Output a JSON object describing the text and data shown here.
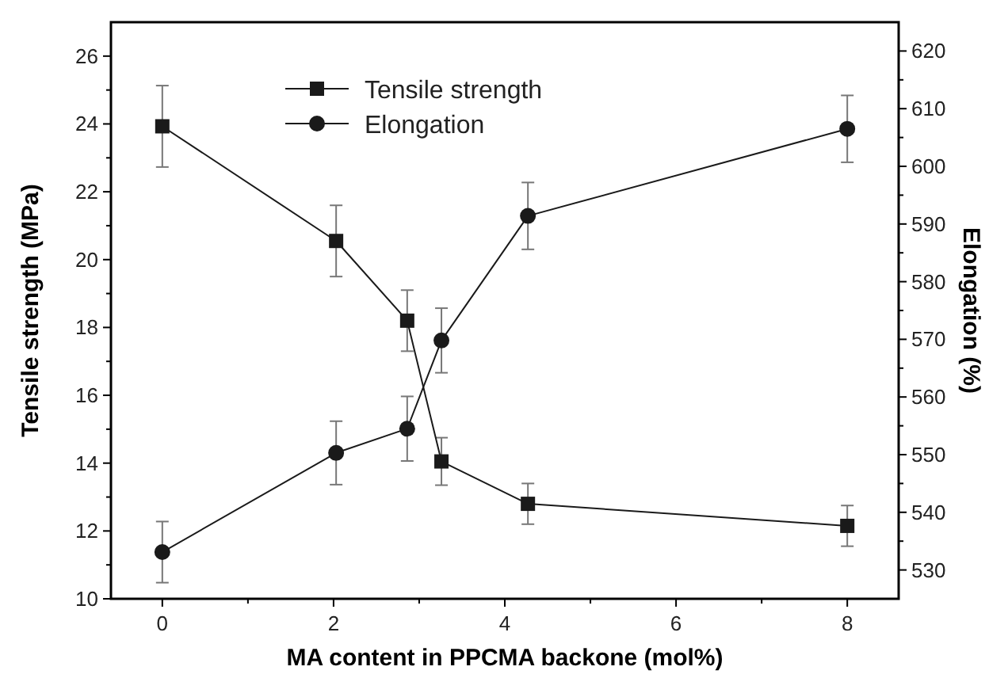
{
  "chart_data": {
    "type": "line",
    "xlabel": "MA content in PPCMA backone (mol%)",
    "ylabel": "Tensile strength (MPa)",
    "y2label": "Elongation (%)",
    "x": [
      0,
      2.03,
      2.86,
      3.26,
      4.27,
      8
    ],
    "xlim": [
      -0.6,
      8.6
    ],
    "xticks": [
      0,
      {
        "value": 1,
        "label": null
      },
      2,
      {
        "value": 3,
        "label": null
      },
      4,
      {
        "value": 5,
        "label": null
      },
      6,
      {
        "value": 7,
        "label": null
      },
      8
    ],
    "ylim": [
      10,
      27
    ],
    "yticks": [
      10,
      {
        "value": 11,
        "label": null
      },
      12,
      {
        "value": 13,
        "label": null
      },
      14,
      {
        "value": 15,
        "label": null
      },
      16,
      {
        "value": 17,
        "label": null
      },
      18,
      {
        "value": 19,
        "label": null
      },
      20,
      {
        "value": 21,
        "label": null
      },
      22,
      {
        "value": 23,
        "label": null
      },
      24,
      {
        "value": 25,
        "label": null
      },
      26
    ],
    "y2lim": [
      525,
      625
    ],
    "y2ticks": [
      530,
      {
        "value": 535,
        "label": null
      },
      540,
      {
        "value": 545,
        "label": null
      },
      550,
      {
        "value": 555,
        "label": null
      },
      560,
      {
        "value": 565,
        "label": null
      },
      570,
      {
        "value": 575,
        "label": null
      },
      580,
      {
        "value": 585,
        "label": null
      },
      590,
      {
        "value": 595,
        "label": null
      },
      600,
      {
        "value": 605,
        "label": null
      },
      610,
      {
        "value": 615,
        "label": null
      },
      620
    ],
    "grid": false,
    "legend": "top left",
    "line_style": "solid",
    "series": [
      {
        "name": "Tensile strength",
        "color": "#1a1a1a",
        "marker": "square",
        "values": [
          23.93,
          20.55,
          18.2,
          14.05,
          12.8,
          12.15
        ],
        "errors": [
          1.2,
          1.05,
          0.9,
          0.7,
          0.6,
          0.6
        ]
      },
      {
        "name": "Elongation",
        "color": "#1a1a1a",
        "marker": "circle",
        "axis": "y2",
        "values": [
          533.1,
          550.3,
          554.5,
          569.8,
          591.4,
          606.5
        ],
        "errors": [
          5.3,
          5.5,
          5.6,
          5.6,
          5.8,
          5.8
        ]
      }
    ]
  }
}
